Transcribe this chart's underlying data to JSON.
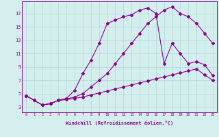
{
  "xlabel": "Windchill (Refroidissement éolien,°C)",
  "ylabel": "",
  "bg_color": "#d4eeee",
  "grid_color": "#b0d8d8",
  "line_color": "#880088",
  "x_ticks": [
    0,
    1,
    2,
    3,
    4,
    5,
    6,
    7,
    8,
    9,
    10,
    11,
    12,
    13,
    14,
    15,
    16,
    17,
    18,
    19,
    20,
    21,
    22,
    23
  ],
  "y_ticks": [
    3,
    5,
    7,
    9,
    11,
    13,
    15,
    17
  ],
  "ylim": [
    2.2,
    18.8
  ],
  "xlim": [
    -0.5,
    23.5
  ],
  "series1_x": [
    0,
    1,
    2,
    3,
    4,
    5,
    6,
    7,
    8,
    9,
    10,
    11,
    12,
    13,
    14,
    15,
    16,
    17,
    18,
    19,
    20,
    21,
    22,
    23
  ],
  "series1_y": [
    4.7,
    4.0,
    3.3,
    3.5,
    4.0,
    4.3,
    5.5,
    8.0,
    10.0,
    12.5,
    15.5,
    16.0,
    16.5,
    16.8,
    17.5,
    17.8,
    17.0,
    9.5,
    12.5,
    11.0,
    9.5,
    9.8,
    9.3,
    7.7
  ],
  "series2_x": [
    0,
    1,
    2,
    3,
    4,
    5,
    6,
    7,
    8,
    9,
    10,
    11,
    12,
    13,
    14,
    15,
    16,
    17,
    18,
    19,
    20,
    21,
    22,
    23
  ],
  "series2_y": [
    4.7,
    4.0,
    3.3,
    3.5,
    4.0,
    4.2,
    4.5,
    5.0,
    6.0,
    7.0,
    8.0,
    9.5,
    11.0,
    12.5,
    14.0,
    15.5,
    16.5,
    17.5,
    18.0,
    17.0,
    16.5,
    15.5,
    14.0,
    12.5
  ],
  "series3_x": [
    0,
    1,
    2,
    3,
    4,
    5,
    6,
    7,
    8,
    9,
    10,
    11,
    12,
    13,
    14,
    15,
    16,
    17,
    18,
    19,
    20,
    21,
    22,
    23
  ],
  "series3_y": [
    4.7,
    4.0,
    3.3,
    3.5,
    4.0,
    4.1,
    4.3,
    4.5,
    4.8,
    5.1,
    5.4,
    5.7,
    6.0,
    6.3,
    6.6,
    6.9,
    7.2,
    7.5,
    7.8,
    8.1,
    8.4,
    8.7,
    7.8,
    7.0
  ]
}
